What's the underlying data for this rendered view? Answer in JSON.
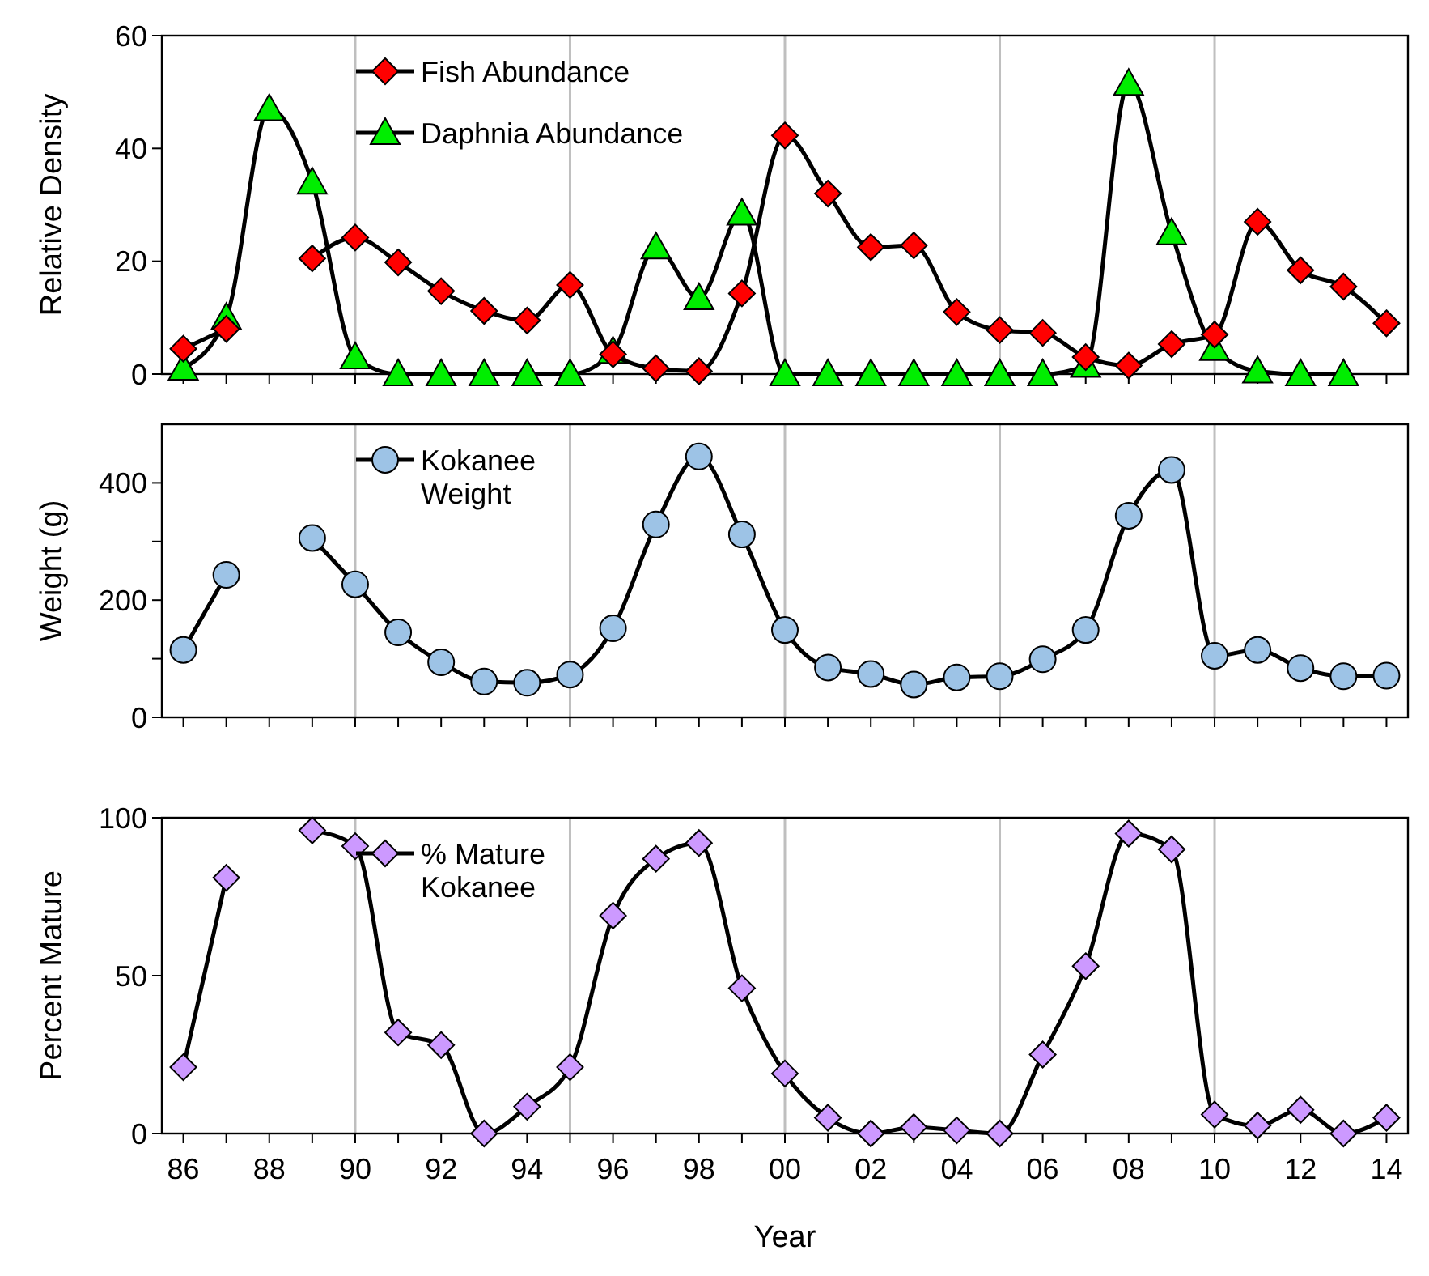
{
  "chart_data": [
    {
      "type": "line",
      "ylabel": "Relative Density",
      "x": [
        1986,
        1987,
        1988,
        1989,
        1990,
        1991,
        1992,
        1993,
        1994,
        1995,
        1996,
        1997,
        1998,
        1999,
        2000,
        2001,
        2002,
        2003,
        2004,
        2005,
        2006,
        2007,
        2008,
        2009,
        2010,
        2011,
        2012,
        2013,
        2014
      ],
      "xlim": [
        1985.5,
        2014.5
      ],
      "ylim": [
        0,
        60
      ],
      "yticks": [
        0,
        20,
        40,
        60
      ],
      "xticks": [
        {
          "value": 1986,
          "label": null
        },
        {
          "value": 1987,
          "label": null
        },
        {
          "value": 1988,
          "label": null
        },
        {
          "value": 1989,
          "label": null
        },
        {
          "value": 1990,
          "label": null
        },
        {
          "value": 1991,
          "label": null
        },
        {
          "value": 1992,
          "label": null
        },
        {
          "value": 1993,
          "label": null
        },
        {
          "value": 1994,
          "label": null
        },
        {
          "value": 1995,
          "label": null
        },
        {
          "value": 1996,
          "label": null
        },
        {
          "value": 1997,
          "label": null
        },
        {
          "value": 1998,
          "label": null
        },
        {
          "value": 1999,
          "label": null
        },
        {
          "value": 2000,
          "label": null
        },
        {
          "value": 2001,
          "label": null
        },
        {
          "value": 2002,
          "label": null
        },
        {
          "value": 2003,
          "label": null
        },
        {
          "value": 2004,
          "label": null
        },
        {
          "value": 2005,
          "label": null
        },
        {
          "value": 2006,
          "label": null
        },
        {
          "value": 2007,
          "label": null
        },
        {
          "value": 2008,
          "label": null
        },
        {
          "value": 2009,
          "label": null
        },
        {
          "value": 2010,
          "label": null
        },
        {
          "value": 2011,
          "label": null
        },
        {
          "value": 2012,
          "label": null
        },
        {
          "value": 2013,
          "label": null
        },
        {
          "value": 2014,
          "label": null
        }
      ],
      "tick_labels": "y",
      "legend": "top left",
      "grid": false,
      "ref_lines": [
        {
          "axis": "x",
          "value": 1990,
          "color": "#bfbfbf"
        },
        {
          "axis": "x",
          "value": 1995,
          "color": "#bfbfbf"
        },
        {
          "axis": "x",
          "value": 2000,
          "color": "#bfbfbf"
        },
        {
          "axis": "x",
          "value": 2005,
          "color": "#bfbfbf"
        },
        {
          "axis": "x",
          "value": 2010,
          "color": "#bfbfbf"
        }
      ],
      "series": [
        {
          "name": "Fish Abundance",
          "color": "#ff0000",
          "marker": "diamond",
          "values": [
            4.5,
            8,
            null,
            20.5,
            24.2,
            19.8,
            14.7,
            11.2,
            9.5,
            15.8,
            3.5,
            1,
            0.5,
            14.3,
            42.3,
            32,
            22.5,
            22.8,
            11,
            7.8,
            7.3,
            3,
            1.5,
            5.3,
            7,
            27,
            18.4,
            15.5,
            9
          ]
        },
        {
          "name": "Daphnia Abundance",
          "color": "#00ee00",
          "marker": "triangle",
          "values": [
            1,
            10,
            47,
            34,
            3,
            0,
            0,
            0,
            0,
            0,
            4,
            22.5,
            13.5,
            28.5,
            0,
            0,
            0,
            0,
            0,
            0,
            0,
            1.5,
            51.5,
            25,
            4.5,
            0.5,
            0,
            0,
            null
          ]
        }
      ]
    },
    {
      "type": "line",
      "ylabel": "Weight (g)",
      "x": [
        1986,
        1987,
        1988,
        1989,
        1990,
        1991,
        1992,
        1993,
        1994,
        1995,
        1996,
        1997,
        1998,
        1999,
        2000,
        2001,
        2002,
        2003,
        2004,
        2005,
        2006,
        2007,
        2008,
        2009,
        2010,
        2011,
        2012,
        2013,
        2014
      ],
      "xlim": [
        1985.5,
        2014.5
      ],
      "ylim": [
        0,
        500
      ],
      "yticks": [
        0,
        {
          "value": 100,
          "label": null
        },
        200,
        {
          "value": 300,
          "label": null
        },
        400
      ],
      "xticks": [
        {
          "value": 1986,
          "label": null
        },
        {
          "value": 1987,
          "label": null
        },
        {
          "value": 1988,
          "label": null
        },
        {
          "value": 1989,
          "label": null
        },
        {
          "value": 1990,
          "label": null
        },
        {
          "value": 1991,
          "label": null
        },
        {
          "value": 1992,
          "label": null
        },
        {
          "value": 1993,
          "label": null
        },
        {
          "value": 1994,
          "label": null
        },
        {
          "value": 1995,
          "label": null
        },
        {
          "value": 1996,
          "label": null
        },
        {
          "value": 1997,
          "label": null
        },
        {
          "value": 1998,
          "label": null
        },
        {
          "value": 1999,
          "label": null
        },
        {
          "value": 2000,
          "label": null
        },
        {
          "value": 2001,
          "label": null
        },
        {
          "value": 2002,
          "label": null
        },
        {
          "value": 2003,
          "label": null
        },
        {
          "value": 2004,
          "label": null
        },
        {
          "value": 2005,
          "label": null
        },
        {
          "value": 2006,
          "label": null
        },
        {
          "value": 2007,
          "label": null
        },
        {
          "value": 2008,
          "label": null
        },
        {
          "value": 2009,
          "label": null
        },
        {
          "value": 2010,
          "label": null
        },
        {
          "value": 2011,
          "label": null
        },
        {
          "value": 2012,
          "label": null
        },
        {
          "value": 2013,
          "label": null
        },
        {
          "value": 2014,
          "label": null
        }
      ],
      "tick_labels": "y",
      "legend": "top left",
      "grid": false,
      "ref_lines": [
        {
          "axis": "x",
          "value": 1990,
          "color": "#bfbfbf"
        },
        {
          "axis": "x",
          "value": 1995,
          "color": "#bfbfbf"
        },
        {
          "axis": "x",
          "value": 2000,
          "color": "#bfbfbf"
        },
        {
          "axis": "x",
          "value": 2005,
          "color": "#bfbfbf"
        },
        {
          "axis": "x",
          "value": 2010,
          "color": "#bfbfbf"
        }
      ],
      "series": [
        {
          "name": "Kokanee Weight",
          "color": "#9dc3e6",
          "marker": "circle",
          "values": [
            115,
            243,
            null,
            306,
            227,
            145,
            94,
            61,
            59,
            73,
            152,
            329,
            445,
            312,
            149,
            85,
            74,
            56,
            68,
            70,
            99,
            149,
            344,
            422,
            105,
            115,
            84,
            70,
            71
          ]
        }
      ]
    },
    {
      "type": "line",
      "ylabel": "Percent Mature",
      "xlabel": "Year",
      "x": [
        1986,
        1987,
        1988,
        1989,
        1990,
        1991,
        1992,
        1993,
        1994,
        1995,
        1996,
        1997,
        1998,
        1999,
        2000,
        2001,
        2002,
        2003,
        2004,
        2005,
        2006,
        2007,
        2008,
        2009,
        2010,
        2011,
        2012,
        2013,
        2014
      ],
      "xlim": [
        1985.5,
        2014.5
      ],
      "ylim": [
        0,
        100
      ],
      "yticks": [
        0,
        50,
        100
      ],
      "xticks": [
        {
          "value": 1986,
          "label": "86"
        },
        {
          "value": 1987,
          "label": null
        },
        {
          "value": 1988,
          "label": "88"
        },
        {
          "value": 1989,
          "label": null
        },
        {
          "value": 1990,
          "label": "90"
        },
        {
          "value": 1991,
          "label": null
        },
        {
          "value": 1992,
          "label": "92"
        },
        {
          "value": 1993,
          "label": null
        },
        {
          "value": 1994,
          "label": "94"
        },
        {
          "value": 1995,
          "label": null
        },
        {
          "value": 1996,
          "label": "96"
        },
        {
          "value": 1997,
          "label": null
        },
        {
          "value": 1998,
          "label": "98"
        },
        {
          "value": 1999,
          "label": null
        },
        {
          "value": 2000,
          "label": "00"
        },
        {
          "value": 2001,
          "label": null
        },
        {
          "value": 2002,
          "label": "02"
        },
        {
          "value": 2003,
          "label": null
        },
        {
          "value": 2004,
          "label": "04"
        },
        {
          "value": 2005,
          "label": null
        },
        {
          "value": 2006,
          "label": "06"
        },
        {
          "value": 2007,
          "label": null
        },
        {
          "value": 2008,
          "label": "08"
        },
        {
          "value": 2009,
          "label": null
        },
        {
          "value": 2010,
          "label": "10"
        },
        {
          "value": 2011,
          "label": null
        },
        {
          "value": 2012,
          "label": "12"
        },
        {
          "value": 2013,
          "label": null
        },
        {
          "value": 2014,
          "label": "14"
        }
      ],
      "legend": "top left",
      "grid": false,
      "ref_lines": [
        {
          "axis": "x",
          "value": 1990,
          "color": "#bfbfbf"
        },
        {
          "axis": "x",
          "value": 1995,
          "color": "#bfbfbf"
        },
        {
          "axis": "x",
          "value": 2000,
          "color": "#bfbfbf"
        },
        {
          "axis": "x",
          "value": 2005,
          "color": "#bfbfbf"
        },
        {
          "axis": "x",
          "value": 2010,
          "color": "#bfbfbf"
        }
      ],
      "series": [
        {
          "name": "% Mature Kokanee",
          "color": "#cc99ff",
          "marker": "diamond",
          "values": [
            21,
            81,
            null,
            96,
            91,
            32,
            28,
            0,
            8.5,
            21,
            69,
            87,
            92,
            46,
            19,
            5,
            0,
            2,
            1,
            0,
            25,
            53,
            95,
            90,
            6,
            2.5,
            7.5,
            0,
            5
          ]
        }
      ]
    }
  ]
}
